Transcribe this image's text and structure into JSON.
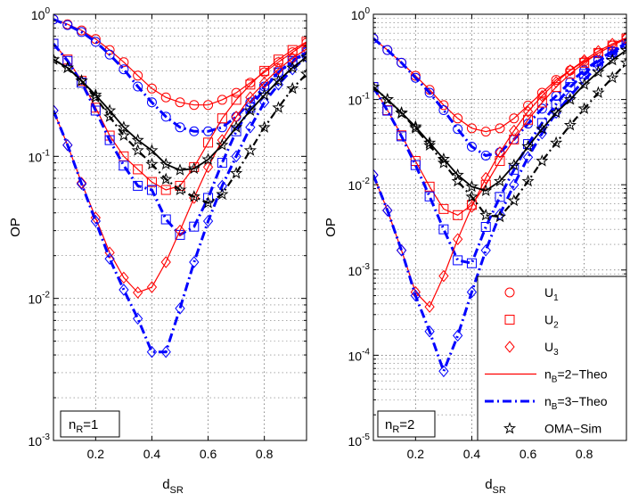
{
  "chart_data": [
    {
      "type": "line",
      "ylabel": "OP",
      "xlabel_main": "d",
      "xlabel_sub": "SR",
      "xlim": [
        0.05,
        0.95
      ],
      "ylim": [
        0.001,
        1
      ],
      "y_scale": "log",
      "grid": true,
      "x_ticks": [
        "0.2",
        "0.4",
        "0.6",
        "0.8"
      ],
      "x_tick_values": [
        0.2,
        0.4,
        0.6,
        0.8
      ],
      "y_tick_exponents": [
        -3,
        -2,
        -1,
        0
      ],
      "annotation": {
        "main": "n",
        "sub": "R",
        "suffix": "=1"
      },
      "series": [
        {
          "user": "U1",
          "nb": 2,
          "marker": "circle",
          "color": "#ff0000",
          "x": [
            0.05,
            0.1,
            0.15,
            0.2,
            0.25,
            0.3,
            0.35,
            0.4,
            0.45,
            0.5,
            0.55,
            0.6,
            0.65,
            0.7,
            0.75,
            0.8,
            0.85,
            0.9,
            0.95
          ],
          "y": [
            0.92,
            0.85,
            0.77,
            0.67,
            0.56,
            0.46,
            0.37,
            0.3,
            0.26,
            0.24,
            0.23,
            0.23,
            0.25,
            0.28,
            0.33,
            0.39,
            0.46,
            0.54,
            0.63
          ]
        },
        {
          "user": "U1",
          "nb": 3,
          "marker": "circle",
          "color": "#0000ff",
          "x": [
            0.05,
            0.1,
            0.15,
            0.2,
            0.25,
            0.3,
            0.35,
            0.4,
            0.45,
            0.5,
            0.55,
            0.6,
            0.65,
            0.7,
            0.75,
            0.8,
            0.85,
            0.9,
            0.95
          ],
          "y": [
            0.92,
            0.84,
            0.75,
            0.64,
            0.52,
            0.41,
            0.31,
            0.24,
            0.19,
            0.16,
            0.15,
            0.15,
            0.16,
            0.19,
            0.24,
            0.31,
            0.39,
            0.46,
            0.54
          ]
        },
        {
          "user": "U2",
          "nb": 2,
          "marker": "square",
          "color": "#ff0000",
          "x": [
            0.05,
            0.1,
            0.15,
            0.2,
            0.25,
            0.3,
            0.35,
            0.4,
            0.45,
            0.5,
            0.55,
            0.6,
            0.65,
            0.7,
            0.75,
            0.8,
            0.85,
            0.9,
            0.95
          ],
          "y": [
            0.62,
            0.48,
            0.34,
            0.22,
            0.14,
            0.1,
            0.081,
            0.066,
            0.058,
            0.062,
            0.084,
            0.125,
            0.185,
            0.25,
            0.32,
            0.4,
            0.48,
            0.56,
            0.64
          ]
        },
        {
          "user": "U2",
          "nb": 3,
          "marker": "square",
          "color": "#0000ff",
          "x": [
            0.05,
            0.1,
            0.15,
            0.2,
            0.25,
            0.3,
            0.35,
            0.4,
            0.45,
            0.5,
            0.55,
            0.6,
            0.65,
            0.7,
            0.75,
            0.8,
            0.85,
            0.9,
            0.95
          ],
          "y": [
            0.62,
            0.47,
            0.33,
            0.21,
            0.13,
            0.086,
            0.062,
            0.058,
            0.036,
            0.028,
            0.032,
            0.051,
            0.09,
            0.15,
            0.22,
            0.3,
            0.39,
            0.47,
            0.54
          ]
        },
        {
          "user": "U3",
          "nb": 2,
          "marker": "diamond",
          "color": "#ff0000",
          "x": [
            0.05,
            0.1,
            0.15,
            0.2,
            0.25,
            0.3,
            0.35,
            0.4,
            0.45,
            0.5,
            0.55,
            0.6,
            0.65,
            0.7,
            0.75,
            0.8,
            0.85,
            0.9,
            0.95
          ],
          "y": [
            0.21,
            0.12,
            0.065,
            0.037,
            0.021,
            0.014,
            0.011,
            0.012,
            0.018,
            0.03,
            0.051,
            0.084,
            0.13,
            0.19,
            0.26,
            0.33,
            0.41,
            0.49,
            0.57
          ]
        },
        {
          "user": "U3",
          "nb": 3,
          "marker": "diamond",
          "color": "#0000ff",
          "x": [
            0.05,
            0.1,
            0.15,
            0.2,
            0.25,
            0.3,
            0.35,
            0.4,
            0.45,
            0.5,
            0.55,
            0.6,
            0.65,
            0.7,
            0.75,
            0.8,
            0.85,
            0.9,
            0.95
          ],
          "y": [
            0.21,
            0.12,
            0.064,
            0.035,
            0.019,
            0.0115,
            0.0072,
            0.0042,
            0.0042,
            0.0085,
            0.018,
            0.035,
            0.062,
            0.1,
            0.16,
            0.24,
            0.32,
            0.41,
            0.5
          ]
        },
        {
          "user": "OMA",
          "nb": 2,
          "marker": "star",
          "color": "#000000",
          "x": [
            0.05,
            0.1,
            0.15,
            0.2,
            0.25,
            0.3,
            0.35,
            0.4,
            0.45,
            0.5,
            0.55,
            0.6,
            0.65,
            0.7,
            0.75,
            0.8,
            0.85,
            0.9,
            0.95
          ],
          "y": [
            0.48,
            0.42,
            0.34,
            0.27,
            0.21,
            0.16,
            0.13,
            0.11,
            0.088,
            0.08,
            0.082,
            0.095,
            0.12,
            0.16,
            0.21,
            0.27,
            0.34,
            0.42,
            0.5
          ]
        },
        {
          "user": "OMA",
          "nb": 3,
          "marker": "star",
          "color": "#000000",
          "x": [
            0.05,
            0.1,
            0.15,
            0.2,
            0.25,
            0.3,
            0.35,
            0.4,
            0.45,
            0.5,
            0.55,
            0.6,
            0.65,
            0.7,
            0.75,
            0.8,
            0.85,
            0.9,
            0.95
          ],
          "y": [
            0.48,
            0.42,
            0.34,
            0.26,
            0.19,
            0.14,
            0.11,
            0.088,
            0.069,
            0.058,
            0.052,
            0.047,
            0.054,
            0.076,
            0.11,
            0.16,
            0.22,
            0.3,
            0.38
          ]
        }
      ]
    },
    {
      "type": "line",
      "ylabel": "OP",
      "xlabel_main": "d",
      "xlabel_sub": "SR",
      "xlim": [
        0.05,
        0.95
      ],
      "ylim": [
        1e-05,
        1
      ],
      "y_scale": "log",
      "grid": true,
      "x_ticks": [
        "0.2",
        "0.4",
        "0.6",
        "0.8"
      ],
      "x_tick_values": [
        0.2,
        0.4,
        0.6,
        0.8
      ],
      "y_tick_exponents": [
        -5,
        -4,
        -3,
        -2,
        -1,
        0
      ],
      "annotation": {
        "main": "n",
        "sub": "R",
        "suffix": "=2"
      },
      "legend_position": "lower-right",
      "legend": [
        {
          "kind": "marker",
          "marker": "circle",
          "color": "#ff0000",
          "label_main": "U",
          "label_sub": "1"
        },
        {
          "kind": "marker",
          "marker": "square",
          "color": "#ff0000",
          "label_main": "U",
          "label_sub": "2"
        },
        {
          "kind": "marker",
          "marker": "diamond",
          "color": "#ff0000",
          "label_main": "U",
          "label_sub": "3"
        },
        {
          "kind": "line",
          "style": "solid",
          "color": "#ff0000",
          "label_main": "n",
          "label_sub": "B",
          "label_suffix": "=2−Theo"
        },
        {
          "kind": "line",
          "style": "dashdot",
          "color": "#0000ff",
          "label_main": "n",
          "label_sub": "B",
          "label_suffix": "=3−Theo"
        },
        {
          "kind": "marker",
          "marker": "star",
          "color": "#000000",
          "label_main": "OMA−Sim",
          "label_sub": "",
          "label_suffix": ""
        }
      ],
      "series": [
        {
          "user": "U1",
          "nb": 2,
          "marker": "circle",
          "color": "#ff0000",
          "x": [
            0.05,
            0.1,
            0.15,
            0.2,
            0.25,
            0.3,
            0.35,
            0.4,
            0.45,
            0.5,
            0.55,
            0.6,
            0.65,
            0.7,
            0.75,
            0.8,
            0.85,
            0.9,
            0.95
          ],
          "y": [
            0.52,
            0.38,
            0.27,
            0.19,
            0.13,
            0.086,
            0.06,
            0.046,
            0.042,
            0.046,
            0.06,
            0.085,
            0.12,
            0.17,
            0.22,
            0.28,
            0.35,
            0.43,
            0.52
          ]
        },
        {
          "user": "U1",
          "nb": 3,
          "marker": "circle",
          "color": "#0000ff",
          "x": [
            0.05,
            0.1,
            0.15,
            0.2,
            0.25,
            0.3,
            0.35,
            0.4,
            0.45,
            0.5,
            0.55,
            0.6,
            0.65,
            0.7,
            0.75,
            0.8,
            0.85,
            0.9,
            0.95
          ],
          "y": [
            0.52,
            0.38,
            0.27,
            0.18,
            0.12,
            0.075,
            0.045,
            0.028,
            0.022,
            0.024,
            0.034,
            0.052,
            0.078,
            0.11,
            0.16,
            0.22,
            0.29,
            0.37,
            0.46
          ]
        },
        {
          "user": "U2",
          "nb": 2,
          "marker": "square",
          "color": "#ff0000",
          "x": [
            0.05,
            0.1,
            0.15,
            0.2,
            0.25,
            0.3,
            0.35,
            0.4,
            0.45,
            0.5,
            0.55,
            0.6,
            0.65,
            0.7,
            0.75,
            0.8,
            0.85,
            0.9,
            0.95
          ],
          "y": [
            0.14,
            0.075,
            0.038,
            0.019,
            0.0095,
            0.0052,
            0.0044,
            0.0058,
            0.01,
            0.019,
            0.034,
            0.058,
            0.092,
            0.14,
            0.2,
            0.27,
            0.35,
            0.43,
            0.52
          ]
        },
        {
          "user": "U2",
          "nb": 3,
          "marker": "square",
          "color": "#0000ff",
          "x": [
            0.05,
            0.1,
            0.15,
            0.2,
            0.25,
            0.3,
            0.35,
            0.4,
            0.45,
            0.5,
            0.55,
            0.6,
            0.65,
            0.7,
            0.75,
            0.8,
            0.85,
            0.9,
            0.95
          ],
          "y": [
            0.14,
            0.074,
            0.037,
            0.017,
            0.0073,
            0.003,
            0.0013,
            0.0012,
            0.0032,
            0.0072,
            0.015,
            0.03,
            0.053,
            0.088,
            0.14,
            0.2,
            0.28,
            0.36,
            0.45
          ]
        },
        {
          "user": "U3",
          "nb": 2,
          "marker": "diamond",
          "color": "#ff0000",
          "x": [
            0.05,
            0.1,
            0.15,
            0.2,
            0.25,
            0.3,
            0.35,
            0.4,
            0.45,
            0.5,
            0.55,
            0.6,
            0.65,
            0.7,
            0.75,
            0.8,
            0.85,
            0.9,
            0.95
          ],
          "y": [
            0.013,
            0.005,
            0.0017,
            0.00055,
            0.00037,
            0.00085,
            0.0023,
            0.0055,
            0.012,
            0.024,
            0.043,
            0.072,
            0.11,
            0.16,
            0.22,
            0.29,
            0.37,
            0.45,
            0.53
          ]
        },
        {
          "user": "U3",
          "nb": 3,
          "marker": "diamond",
          "color": "#0000ff",
          "x": [
            0.05,
            0.1,
            0.15,
            0.2,
            0.25,
            0.3,
            0.35,
            0.4,
            0.45,
            0.5,
            0.55,
            0.6,
            0.65,
            0.7,
            0.75,
            0.8,
            0.85,
            0.9,
            0.95
          ],
          "y": [
            0.013,
            0.005,
            0.0017,
            0.0005,
            0.00019,
            6.5e-05,
            0.00017,
            0.00055,
            0.0017,
            0.0045,
            0.01,
            0.021,
            0.04,
            0.07,
            0.11,
            0.17,
            0.25,
            0.34,
            0.44
          ]
        },
        {
          "user": "OMA",
          "nb": 2,
          "marker": "star",
          "color": "#000000",
          "x": [
            0.05,
            0.1,
            0.15,
            0.2,
            0.25,
            0.3,
            0.35,
            0.4,
            0.45,
            0.5,
            0.55,
            0.6,
            0.65,
            0.7,
            0.75,
            0.8,
            0.85,
            0.9,
            0.95
          ],
          "y": [
            0.14,
            0.1,
            0.07,
            0.048,
            0.031,
            0.02,
            0.013,
            0.0095,
            0.0085,
            0.011,
            0.017,
            0.028,
            0.045,
            0.07,
            0.1,
            0.15,
            0.21,
            0.29,
            0.38
          ]
        },
        {
          "user": "OMA",
          "nb": 3,
          "marker": "star",
          "color": "#000000",
          "x": [
            0.05,
            0.1,
            0.15,
            0.2,
            0.25,
            0.3,
            0.35,
            0.4,
            0.45,
            0.5,
            0.55,
            0.6,
            0.65,
            0.7,
            0.75,
            0.8,
            0.85,
            0.9,
            0.95
          ],
          "y": [
            0.14,
            0.1,
            0.069,
            0.046,
            0.029,
            0.018,
            0.011,
            0.0072,
            0.0044,
            0.0042,
            0.0065,
            0.011,
            0.019,
            0.031,
            0.05,
            0.078,
            0.12,
            0.18,
            0.27
          ]
        }
      ]
    }
  ]
}
